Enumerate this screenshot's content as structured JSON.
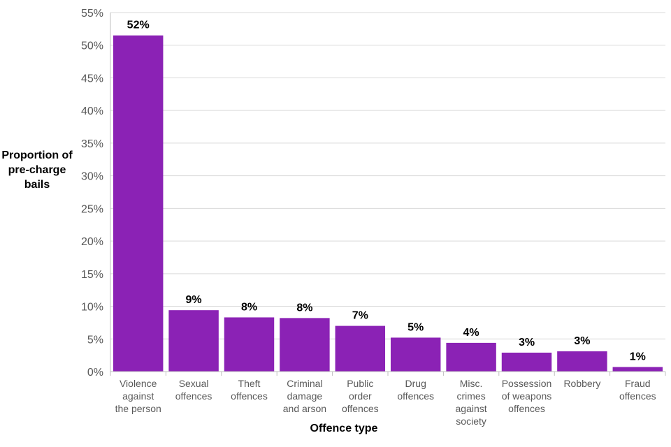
{
  "chart_data": {
    "type": "bar",
    "xlabel": "Offence type",
    "ylabel": "Proportion of pre-charge bails",
    "ylim": [
      0,
      55
    ],
    "y_ticks": [
      "0%",
      "5%",
      "10%",
      "15%",
      "20%",
      "25%",
      "30%",
      "35%",
      "40%",
      "45%",
      "50%",
      "55%"
    ],
    "grid": true,
    "bar_color": "#8B22B5",
    "categories": [
      [
        "Violence",
        "against",
        "the person"
      ],
      [
        "Sexual",
        "offences"
      ],
      [
        "Theft",
        "offences"
      ],
      [
        "Criminal",
        "damage",
        "and arson"
      ],
      [
        "Public",
        "order",
        "offences"
      ],
      [
        "Drug",
        "offences"
      ],
      [
        "Misc.",
        "crimes",
        "against",
        "society"
      ],
      [
        "Possession",
        "of weapons",
        "offences"
      ],
      [
        "Robbery"
      ],
      [
        "Fraud",
        "offences"
      ]
    ],
    "values": [
      51.5,
      9.4,
      8.3,
      8.2,
      7.0,
      5.2,
      4.4,
      2.9,
      3.1,
      0.7
    ],
    "data_labels": [
      "52%",
      "9%",
      "8%",
      "8%",
      "7%",
      "5%",
      "4%",
      "3%",
      "3%",
      "1%"
    ]
  }
}
